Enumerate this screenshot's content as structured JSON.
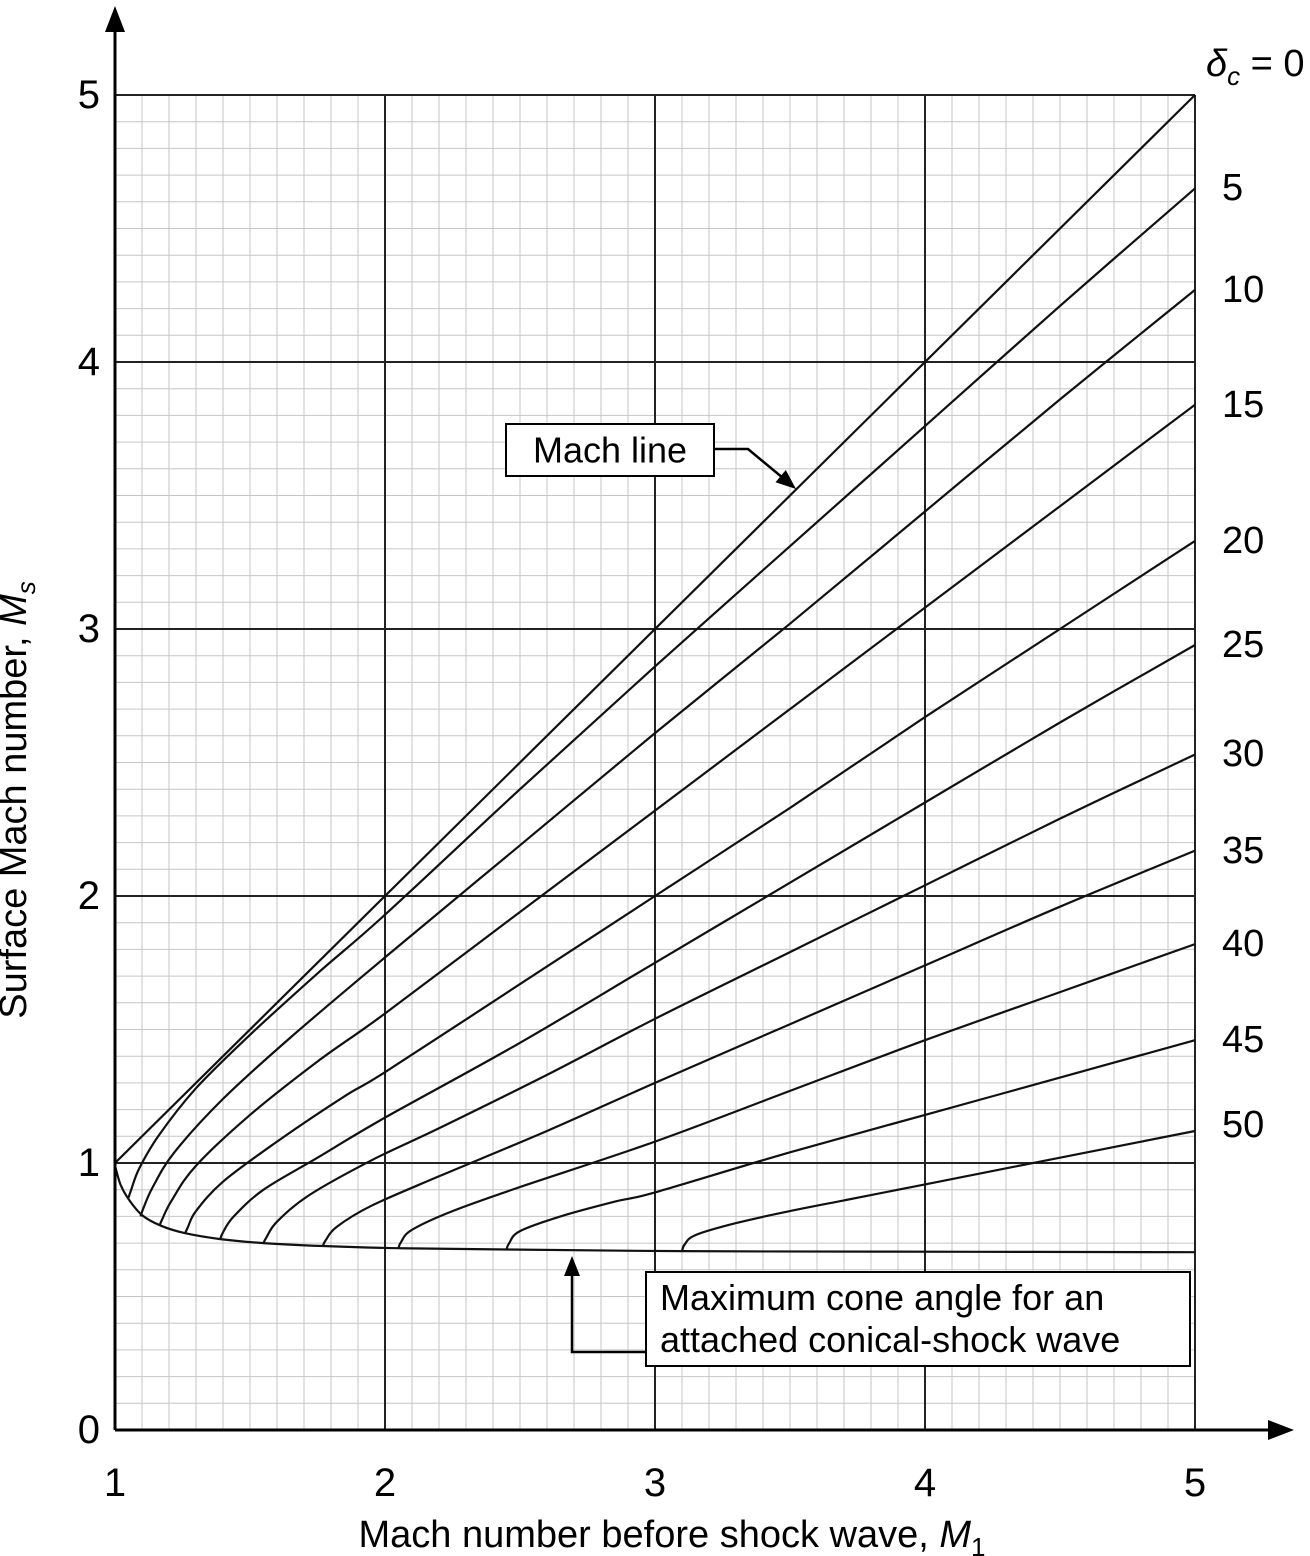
{
  "page": {
    "background": "#ffffff"
  },
  "colors": {
    "curve": "#111111",
    "grid_minor": "#c6c6c6",
    "grid_major": "#222222",
    "axis": "#000000",
    "annotation_box_border": "#000000",
    "text": "#000000"
  },
  "labels": {
    "xlabel_text": "Mach number before shock wave, ",
    "xlabel_var": "M",
    "xlabel_sub": "1",
    "ylabel_text": "Surface Mach number, ",
    "ylabel_var": "M",
    "ylabel_sub": "s",
    "delta_symbol": "δ",
    "delta_sub": "c",
    "delta_rest": " = 0"
  },
  "annotations_text": {
    "mach_line": "Mach line",
    "max_cone_1": "Maximum cone angle for an",
    "max_cone_2": "attached conical-shock wave"
  },
  "chart_data": {
    "type": "line",
    "title": "",
    "xlabel": "Mach number before shock wave, M1",
    "ylabel": "Surface Mach number, Ms",
    "xlim": [
      1,
      5
    ],
    "ylim": [
      0,
      5
    ],
    "x_tick_labels": [
      "1",
      "2",
      "3",
      "4",
      "5"
    ],
    "y_tick_labels": [
      "0",
      "1",
      "2",
      "3",
      "4",
      "5"
    ],
    "minor_grid_step": 0.1,
    "grid": true,
    "legend_position": "labels at right edge of curves",
    "series": [
      {
        "name": "delta_c = 0 (Mach line)",
        "cone_angle_deg": 0,
        "label": "δc = 0",
        "points": [
          [
            1.0,
            1.0
          ],
          [
            5.0,
            5.0
          ]
        ]
      },
      {
        "name": "delta_c = 5",
        "cone_angle_deg": 5,
        "label": "5",
        "points": [
          [
            1.05,
            0.87
          ],
          [
            1.06,
            0.9
          ],
          [
            1.09,
            0.98
          ],
          [
            1.16,
            1.1
          ],
          [
            1.3,
            1.28
          ],
          [
            1.5,
            1.48
          ],
          [
            1.75,
            1.71
          ],
          [
            2.0,
            1.93
          ],
          [
            2.5,
            2.4
          ],
          [
            3.0,
            2.86
          ],
          [
            3.5,
            3.31
          ],
          [
            4.0,
            3.76
          ],
          [
            4.5,
            4.21
          ],
          [
            5.0,
            4.65
          ]
        ]
      },
      {
        "name": "delta_c = 10",
        "cone_angle_deg": 10,
        "label": "10",
        "points": [
          [
            1.095,
            0.8
          ],
          [
            1.105,
            0.83
          ],
          [
            1.14,
            0.91
          ],
          [
            1.22,
            1.04
          ],
          [
            1.4,
            1.24
          ],
          [
            1.65,
            1.47
          ],
          [
            2.0,
            1.77
          ],
          [
            2.5,
            2.19
          ],
          [
            3.0,
            2.61
          ],
          [
            3.5,
            3.02
          ],
          [
            4.0,
            3.44
          ],
          [
            4.5,
            3.86
          ],
          [
            5.0,
            4.27
          ]
        ]
      },
      {
        "name": "delta_c = 15",
        "cone_angle_deg": 15,
        "label": "15",
        "points": [
          [
            1.165,
            0.765
          ],
          [
            1.175,
            0.79
          ],
          [
            1.21,
            0.86
          ],
          [
            1.3,
            0.99
          ],
          [
            1.5,
            1.18
          ],
          [
            1.75,
            1.38
          ],
          [
            2.0,
            1.56
          ],
          [
            2.5,
            1.94
          ],
          [
            3.0,
            2.32
          ],
          [
            3.5,
            2.7
          ],
          [
            4.0,
            3.08
          ],
          [
            4.5,
            3.46
          ],
          [
            5.0,
            3.84
          ]
        ]
      },
      {
        "name": "delta_c = 20",
        "cone_angle_deg": 20,
        "label": "20",
        "points": [
          [
            1.26,
            0.737
          ],
          [
            1.27,
            0.76
          ],
          [
            1.3,
            0.82
          ],
          [
            1.4,
            0.93
          ],
          [
            1.6,
            1.08
          ],
          [
            1.85,
            1.25
          ],
          [
            2.0,
            1.34
          ],
          [
            2.5,
            1.67
          ],
          [
            3.0,
            2.0
          ],
          [
            3.5,
            2.33
          ],
          [
            4.0,
            2.67
          ],
          [
            4.5,
            3.0
          ],
          [
            5.0,
            3.33
          ]
        ]
      },
      {
        "name": "delta_c = 25",
        "cone_angle_deg": 25,
        "label": "25",
        "points": [
          [
            1.39,
            0.715
          ],
          [
            1.4,
            0.74
          ],
          [
            1.44,
            0.8
          ],
          [
            1.55,
            0.9
          ],
          [
            1.75,
            1.02
          ],
          [
            2.0,
            1.17
          ],
          [
            2.5,
            1.45
          ],
          [
            3.0,
            1.75
          ],
          [
            3.5,
            2.05
          ],
          [
            4.0,
            2.35
          ],
          [
            4.5,
            2.65
          ],
          [
            5.0,
            2.94
          ]
        ]
      },
      {
        "name": "delta_c = 30",
        "cone_angle_deg": 30,
        "label": "30",
        "points": [
          [
            1.55,
            0.7
          ],
          [
            1.56,
            0.72
          ],
          [
            1.6,
            0.78
          ],
          [
            1.72,
            0.88
          ],
          [
            1.95,
            1.01
          ],
          [
            2.2,
            1.13
          ],
          [
            2.6,
            1.33
          ],
          [
            3.0,
            1.54
          ],
          [
            3.5,
            1.79
          ],
          [
            4.0,
            2.04
          ],
          [
            4.5,
            2.29
          ],
          [
            5.0,
            2.53
          ]
        ]
      },
      {
        "name": "delta_c = 35",
        "cone_angle_deg": 35,
        "label": "35",
        "points": [
          [
            1.77,
            0.689
          ],
          [
            1.78,
            0.71
          ],
          [
            1.82,
            0.76
          ],
          [
            1.95,
            0.84
          ],
          [
            2.2,
            0.95
          ],
          [
            2.6,
            1.12
          ],
          [
            3.0,
            1.3
          ],
          [
            3.5,
            1.52
          ],
          [
            4.0,
            1.74
          ],
          [
            4.5,
            1.96
          ],
          [
            5.0,
            2.17
          ]
        ]
      },
      {
        "name": "delta_c = 40",
        "cone_angle_deg": 40,
        "label": "40",
        "points": [
          [
            2.05,
            0.681
          ],
          [
            2.06,
            0.705
          ],
          [
            2.1,
            0.75
          ],
          [
            2.25,
            0.82
          ],
          [
            2.5,
            0.91
          ],
          [
            3.0,
            1.08
          ],
          [
            3.5,
            1.27
          ],
          [
            4.0,
            1.46
          ],
          [
            4.5,
            1.64
          ],
          [
            5.0,
            1.82
          ]
        ]
      },
      {
        "name": "delta_c = 45",
        "cone_angle_deg": 45,
        "label": "45",
        "points": [
          [
            2.45,
            0.676
          ],
          [
            2.46,
            0.7
          ],
          [
            2.5,
            0.745
          ],
          [
            2.65,
            0.8
          ],
          [
            2.85,
            0.855
          ],
          [
            3.0,
            0.89
          ],
          [
            3.5,
            1.04
          ],
          [
            4.0,
            1.18
          ],
          [
            4.5,
            1.32
          ],
          [
            5.0,
            1.46
          ]
        ]
      },
      {
        "name": "delta_c = 50",
        "cone_angle_deg": 50,
        "label": "50",
        "points": [
          [
            3.1,
            0.67
          ],
          [
            3.11,
            0.695
          ],
          [
            3.15,
            0.73
          ],
          [
            3.3,
            0.775
          ],
          [
            3.5,
            0.82
          ],
          [
            3.7,
            0.86
          ],
          [
            4.0,
            0.92
          ],
          [
            4.5,
            1.02
          ],
          [
            5.0,
            1.12
          ]
        ]
      }
    ],
    "envelope": {
      "name": "maximum cone angle for an attached conical-shock wave",
      "points": [
        [
          1.0,
          0.99
        ],
        [
          1.02,
          0.92
        ],
        [
          1.05,
          0.865
        ],
        [
          1.1,
          0.805
        ],
        [
          1.17,
          0.765
        ],
        [
          1.26,
          0.737
        ],
        [
          1.39,
          0.715
        ],
        [
          1.55,
          0.7
        ],
        [
          1.77,
          0.689
        ],
        [
          2.05,
          0.681
        ],
        [
          2.45,
          0.676
        ],
        [
          3.1,
          0.67
        ],
        [
          3.8,
          0.668
        ],
        [
          4.4,
          0.667
        ],
        [
          5.0,
          0.666
        ]
      ]
    },
    "annotations": [
      {
        "text": "Mach line",
        "points_to": "delta_c = 0 (Mach line)",
        "target_xy": [
          3.5,
          3.5
        ]
      },
      {
        "text": "Maximum cone angle for an attached conical-shock wave",
        "points_to": "envelope",
        "target_xy": [
          2.69,
          0.67
        ]
      }
    ]
  }
}
